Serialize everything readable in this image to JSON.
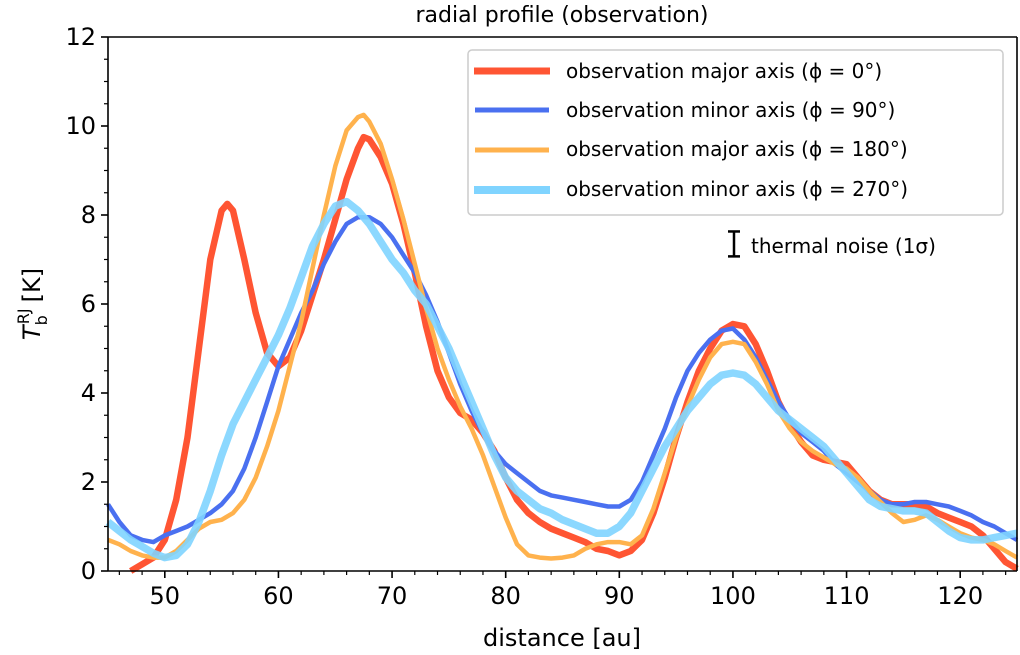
{
  "chart_data": {
    "type": "line",
    "title": "radial profile (observation)",
    "xlabel": "distance [au]",
    "ylabel": {
      "symbol": "T",
      "sub": "b",
      "sup": "RJ",
      "unit": "[K]"
    },
    "xlim": [
      45,
      125
    ],
    "ylim": [
      0,
      12
    ],
    "xticks": [
      50,
      60,
      70,
      80,
      90,
      100,
      110,
      120
    ],
    "yticks": [
      0,
      2,
      4,
      6,
      8,
      10,
      12
    ],
    "grid": false,
    "legend_position": "top-right",
    "series": [
      {
        "name": "observation major axis (ϕ = 0°)",
        "color": "#ff5533",
        "x": [
          47,
          48,
          49,
          50,
          51,
          52,
          53,
          54,
          55,
          55.5,
          56,
          57,
          58,
          59,
          60,
          61,
          62,
          63,
          64,
          65,
          66,
          67,
          67.5,
          68,
          69,
          70,
          71,
          72,
          73,
          74,
          75,
          76,
          77,
          78,
          79,
          80,
          81,
          82,
          83,
          84,
          85,
          86,
          87,
          88,
          89,
          90,
          91,
          92,
          93,
          94,
          95,
          96,
          97,
          98,
          99,
          100,
          101,
          102,
          103,
          104,
          105,
          106,
          107,
          108,
          109,
          110,
          111,
          112,
          113,
          114,
          115,
          116,
          117,
          118,
          119,
          120,
          121,
          122,
          123,
          124,
          125
        ],
        "y": [
          0,
          0.15,
          0.3,
          0.7,
          1.6,
          3.0,
          5.0,
          7.0,
          8.1,
          8.25,
          8.1,
          7.0,
          5.8,
          4.9,
          4.6,
          4.8,
          5.4,
          6.2,
          7.0,
          7.9,
          8.8,
          9.5,
          9.75,
          9.7,
          9.3,
          8.7,
          7.8,
          6.7,
          5.5,
          4.5,
          3.9,
          3.55,
          3.4,
          3.1,
          2.7,
          2.1,
          1.6,
          1.3,
          1.1,
          0.95,
          0.85,
          0.75,
          0.65,
          0.5,
          0.45,
          0.35,
          0.45,
          0.7,
          1.3,
          2.1,
          3.0,
          3.8,
          4.5,
          5.0,
          5.4,
          5.55,
          5.5,
          5.1,
          4.5,
          3.8,
          3.3,
          2.9,
          2.6,
          2.5,
          2.45,
          2.4,
          2.1,
          1.8,
          1.6,
          1.5,
          1.5,
          1.5,
          1.45,
          1.3,
          1.2,
          1.1,
          1.0,
          0.8,
          0.5,
          0.2,
          0.05
        ]
      },
      {
        "name": "observation minor axis (ϕ = 90°)",
        "color": "#4a70f0",
        "x": [
          45,
          46,
          47,
          48,
          49,
          50,
          51,
          52,
          53,
          54,
          55,
          56,
          57,
          58,
          59,
          60,
          61,
          62,
          63,
          64,
          65,
          66,
          67,
          68,
          69,
          70,
          71,
          72,
          73,
          74,
          75,
          76,
          77,
          78,
          79,
          80,
          81,
          82,
          83,
          84,
          85,
          86,
          87,
          88,
          89,
          90,
          91,
          92,
          93,
          94,
          95,
          96,
          97,
          98,
          99,
          100,
          101,
          102,
          103,
          104,
          105,
          106,
          107,
          108,
          109,
          110,
          111,
          112,
          113,
          114,
          115,
          116,
          117,
          118,
          119,
          120,
          121,
          122,
          123,
          124,
          125
        ],
        "y": [
          1.5,
          1.1,
          0.8,
          0.7,
          0.65,
          0.8,
          0.9,
          1.0,
          1.15,
          1.3,
          1.5,
          1.8,
          2.3,
          3.0,
          3.8,
          4.6,
          5.2,
          5.8,
          6.3,
          6.9,
          7.4,
          7.8,
          7.95,
          7.95,
          7.8,
          7.5,
          7.1,
          6.7,
          6.2,
          5.6,
          4.9,
          4.2,
          3.6,
          3.1,
          2.7,
          2.4,
          2.2,
          2.0,
          1.8,
          1.7,
          1.65,
          1.6,
          1.55,
          1.5,
          1.45,
          1.45,
          1.6,
          2.0,
          2.6,
          3.2,
          3.9,
          4.5,
          4.9,
          5.2,
          5.4,
          5.45,
          5.2,
          4.8,
          4.3,
          3.8,
          3.4,
          3.1,
          2.9,
          2.7,
          2.4,
          2.2,
          2.0,
          1.8,
          1.6,
          1.5,
          1.5,
          1.55,
          1.55,
          1.5,
          1.45,
          1.35,
          1.25,
          1.1,
          1.0,
          0.85,
          0.7
        ]
      },
      {
        "name": "observation major axis (ϕ = 180°)",
        "color": "#ffb24d",
        "x": [
          45,
          46,
          47,
          48,
          49,
          50,
          51,
          52,
          53,
          54,
          55,
          56,
          57,
          58,
          59,
          60,
          61,
          62,
          63,
          64,
          65,
          66,
          67,
          67.5,
          68,
          69,
          70,
          71,
          72,
          73,
          74,
          75,
          76,
          77,
          78,
          79,
          80,
          81,
          82,
          83,
          84,
          85,
          86,
          87,
          88,
          89,
          90,
          91,
          92,
          93,
          94,
          95,
          96,
          97,
          98,
          99,
          100,
          101,
          102,
          103,
          104,
          105,
          106,
          107,
          108,
          109,
          110,
          111,
          112,
          113,
          114,
          115,
          116,
          117,
          118,
          119,
          120,
          121,
          122,
          123,
          124,
          125
        ],
        "y": [
          0.7,
          0.6,
          0.45,
          0.35,
          0.3,
          0.3,
          0.45,
          0.7,
          0.95,
          1.1,
          1.15,
          1.3,
          1.6,
          2.1,
          2.8,
          3.6,
          4.6,
          5.6,
          6.8,
          8.0,
          9.1,
          9.9,
          10.2,
          10.25,
          10.1,
          9.6,
          8.8,
          7.9,
          6.9,
          5.9,
          5.0,
          4.3,
          3.7,
          3.2,
          2.6,
          1.9,
          1.2,
          0.6,
          0.35,
          0.3,
          0.28,
          0.3,
          0.35,
          0.5,
          0.6,
          0.65,
          0.65,
          0.6,
          0.8,
          1.4,
          2.2,
          3.0,
          3.7,
          4.3,
          4.8,
          5.1,
          5.15,
          5.1,
          4.7,
          4.2,
          3.6,
          3.2,
          2.9,
          2.7,
          2.55,
          2.4,
          2.3,
          2.1,
          1.8,
          1.55,
          1.3,
          1.1,
          1.15,
          1.25,
          1.15,
          1.0,
          0.85,
          0.75,
          0.7,
          0.6,
          0.45,
          0.3
        ]
      },
      {
        "name": "observation minor axis (ϕ = 270°)",
        "color": "#80d4ff",
        "x": [
          45,
          46,
          47,
          48,
          49,
          50,
          51,
          52,
          53,
          54,
          55,
          56,
          57,
          58,
          59,
          60,
          61,
          62,
          63,
          64,
          65,
          66,
          67,
          68,
          69,
          70,
          71,
          72,
          73,
          74,
          75,
          76,
          77,
          78,
          79,
          80,
          81,
          82,
          83,
          84,
          85,
          86,
          87,
          88,
          89,
          90,
          91,
          92,
          93,
          94,
          95,
          96,
          97,
          98,
          99,
          100,
          101,
          102,
          103,
          104,
          105,
          106,
          107,
          108,
          109,
          110,
          111,
          112,
          113,
          114,
          115,
          116,
          117,
          118,
          119,
          120,
          121,
          122,
          123,
          124,
          125
        ],
        "y": [
          1.1,
          0.9,
          0.7,
          0.55,
          0.4,
          0.3,
          0.35,
          0.6,
          1.1,
          1.8,
          2.6,
          3.3,
          3.8,
          4.3,
          4.8,
          5.3,
          5.9,
          6.6,
          7.3,
          7.8,
          8.2,
          8.3,
          8.1,
          7.8,
          7.4,
          7.0,
          6.7,
          6.3,
          6.0,
          5.5,
          5.0,
          4.4,
          3.8,
          3.2,
          2.6,
          2.1,
          1.8,
          1.6,
          1.4,
          1.3,
          1.15,
          1.05,
          0.95,
          0.85,
          0.85,
          1.0,
          1.3,
          1.8,
          2.3,
          2.8,
          3.2,
          3.6,
          3.9,
          4.2,
          4.4,
          4.45,
          4.4,
          4.2,
          3.9,
          3.6,
          3.4,
          3.2,
          3.0,
          2.8,
          2.5,
          2.2,
          1.9,
          1.6,
          1.45,
          1.4,
          1.35,
          1.35,
          1.3,
          1.1,
          0.9,
          0.75,
          0.7,
          0.7,
          0.75,
          0.8,
          0.85
        ]
      }
    ],
    "annotation": {
      "label": "thermal noise (1σ)",
      "x": 100,
      "y": 7.35,
      "sigma": 0.28
    }
  }
}
